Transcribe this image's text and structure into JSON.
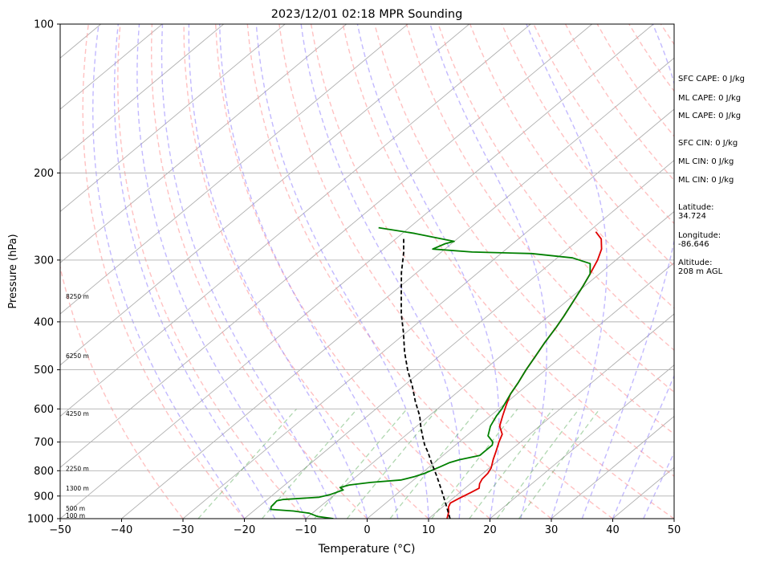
{
  "chart_data": {
    "type": "line",
    "title": "2023/12/01 02:18 MPR Sounding",
    "xlabel": "Temperature (°C)",
    "ylabel": "Pressure (hPa)",
    "xlim": [
      -50,
      50
    ],
    "ylim": [
      1000,
      100
    ],
    "y_scale": "log",
    "grid": true,
    "x_ticks": [
      "−50",
      "−40",
      "−30",
      "−20",
      "−10",
      "0",
      "10",
      "20",
      "30",
      "40",
      "50"
    ],
    "x_tick_values": [
      -50,
      -40,
      -30,
      -20,
      -10,
      0,
      10,
      20,
      30,
      40,
      50
    ],
    "y_ticks": [
      "100",
      "200",
      "300",
      "400",
      "500",
      "600",
      "700",
      "800",
      "900",
      "1000"
    ],
    "y_tick_values": [
      100,
      200,
      300,
      400,
      500,
      600,
      700,
      800,
      900,
      1000
    ],
    "series": [
      {
        "color": "#e00000",
        "points": [
          [
            13.0,
            1000
          ],
          [
            12.0,
            970
          ],
          [
            11.0,
            948
          ],
          [
            10.5,
            930
          ],
          [
            11.0,
            910
          ],
          [
            11.8,
            885
          ],
          [
            12.3,
            868
          ],
          [
            11.5,
            850
          ],
          [
            11.0,
            832
          ],
          [
            10.8,
            810
          ],
          [
            10.3,
            790
          ],
          [
            9.0,
            760
          ],
          [
            7.8,
            730
          ],
          [
            6.5,
            700
          ],
          [
            5.5,
            675
          ],
          [
            3.5,
            650
          ],
          [
            2.0,
            620
          ],
          [
            0.5,
            590
          ],
          [
            -1.0,
            560
          ],
          [
            -2.0,
            530
          ],
          [
            -3.2,
            500
          ],
          [
            -4.3,
            470
          ],
          [
            -5.5,
            440
          ],
          [
            -6.6,
            410
          ],
          [
            -7.5,
            390
          ],
          [
            -8.8,
            365
          ],
          [
            -10.2,
            340
          ],
          [
            -11.5,
            320
          ],
          [
            -13.0,
            300
          ],
          [
            -14.5,
            285
          ],
          [
            -16.5,
            272
          ],
          [
            -18.8,
            263
          ]
        ]
      },
      {
        "color": "#008000",
        "points": [
          [
            -5.5,
            1000
          ],
          [
            -8.5,
            990
          ],
          [
            -10.5,
            975
          ],
          [
            -13.5,
            965
          ],
          [
            -17.5,
            958
          ],
          [
            -18.0,
            945
          ],
          [
            -18.2,
            920
          ],
          [
            -17.5,
            915
          ],
          [
            -12.0,
            905
          ],
          [
            -10.8,
            895
          ],
          [
            -9.5,
            875
          ],
          [
            -10.5,
            865
          ],
          [
            -9.5,
            855
          ],
          [
            -6.5,
            845
          ],
          [
            -2.0,
            835
          ],
          [
            -0.5,
            822
          ],
          [
            0.5,
            810
          ],
          [
            1.0,
            800
          ],
          [
            1.8,
            785
          ],
          [
            2.5,
            770
          ],
          [
            3.5,
            760
          ],
          [
            6.0,
            745
          ],
          [
            6.0,
            710
          ],
          [
            5.5,
            700
          ],
          [
            3.5,
            680
          ],
          [
            2.0,
            650
          ],
          [
            1.0,
            620
          ],
          [
            0.5,
            600
          ],
          [
            -1.0,
            560
          ],
          [
            -2.0,
            530
          ],
          [
            -3.2,
            500
          ],
          [
            -4.3,
            470
          ],
          [
            -5.5,
            440
          ],
          [
            -6.6,
            410
          ],
          [
            -7.5,
            390
          ],
          [
            -8.8,
            365
          ],
          [
            -10.2,
            340
          ],
          [
            -11.5,
            320
          ],
          [
            -13.5,
            305
          ],
          [
            -17.5,
            297
          ],
          [
            -25.0,
            291
          ],
          [
            -35.0,
            289
          ],
          [
            -42.0,
            285
          ],
          [
            -41.0,
            278
          ],
          [
            -40.0,
            275
          ],
          [
            -48.0,
            265
          ],
          [
            -55.0,
            258
          ]
        ]
      },
      {
        "color": "#000000",
        "dashed": true,
        "points": [
          [
            13.5,
            1000
          ],
          [
            10.0,
            935
          ],
          [
            6.5,
            875
          ],
          [
            3.0,
            820
          ],
          [
            -0.5,
            770
          ],
          [
            -3.0,
            735
          ],
          [
            -5.0,
            710
          ],
          [
            -6.8,
            685
          ],
          [
            -9.0,
            655
          ],
          [
            -11.5,
            620
          ],
          [
            -15.0,
            580
          ],
          [
            -18.5,
            540
          ],
          [
            -22.5,
            500
          ],
          [
            -26.5,
            460
          ],
          [
            -30.5,
            420
          ],
          [
            -34.5,
            385
          ],
          [
            -38.5,
            350
          ],
          [
            -42.5,
            318
          ],
          [
            -46.0,
            290
          ],
          [
            -49.0,
            270
          ]
        ]
      }
    ],
    "height_labels": [
      "8250 m",
      "6250 m",
      "4250 m",
      "2250 m",
      "1300 m",
      "500 m",
      "100 m"
    ],
    "height_label_pressures": [
      355,
      468,
      613,
      792,
      868,
      953,
      985
    ]
  },
  "stats": {
    "sfc_cape": "SFC CAPE: 0 J/kg",
    "ml_cape_1": "ML CAPE: 0 J/kg",
    "ml_cape_2": "ML CAPE: 0 J/kg",
    "sfc_cin": "SFC CIN: 0 J/kg",
    "ml_cin_1": "ML CIN: 0 J/kg",
    "ml_cin_2": "ML CIN: 0 J/kg",
    "latitude": "Latitude:\n34.724",
    "longitude": "Longitude:\n-86.646",
    "altitude": "Altitude:\n208 m AGL"
  }
}
